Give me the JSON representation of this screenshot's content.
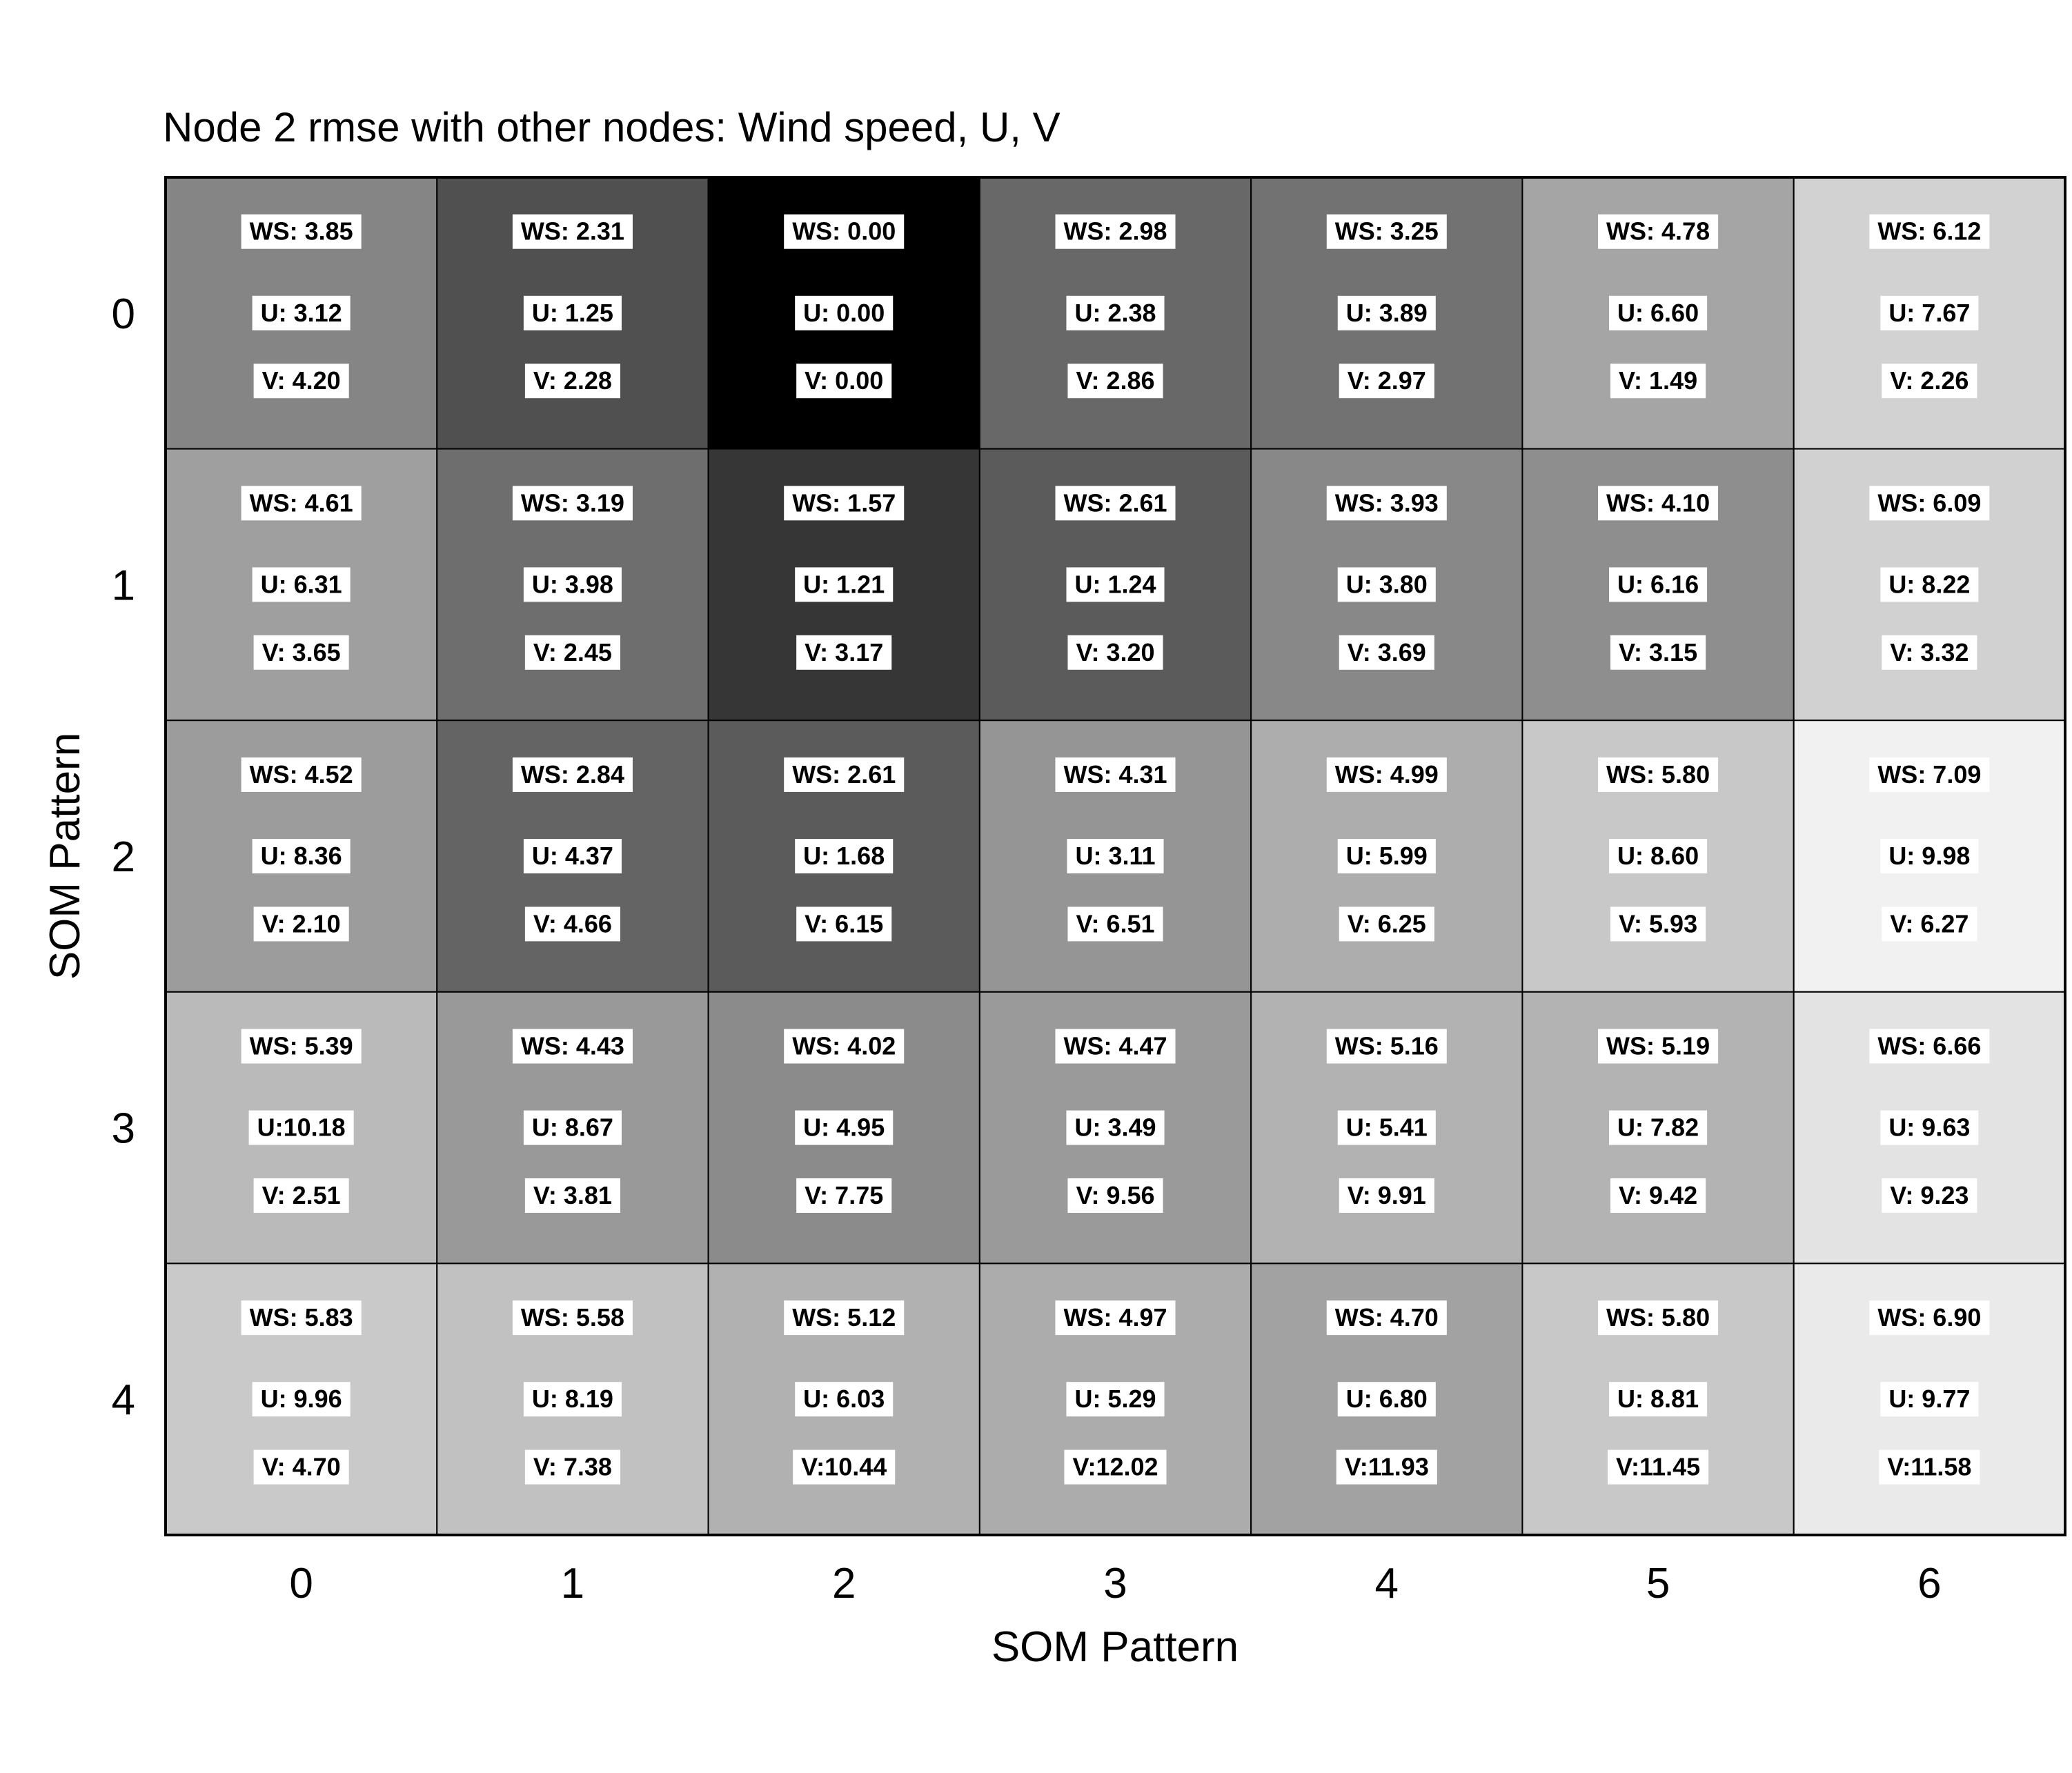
{
  "chart_data": {
    "type": "heatmap",
    "title": "Node 2 rmse with other nodes: Wind speed, U, V",
    "xlabel": "SOM Pattern",
    "ylabel": "SOM Pattern",
    "x_ticks": [
      "0",
      "1",
      "2",
      "3",
      "4",
      "5",
      "6"
    ],
    "y_ticks": [
      "0",
      "1",
      "2",
      "3",
      "4"
    ],
    "colormap": "grayscale (black = 0, lighter = larger WS)",
    "rows": [
      [
        {
          "ws": "WS: 3.85",
          "u": "U: 3.12",
          "v": "V: 4.20",
          "shade": "#858585"
        },
        {
          "ws": "WS: 2.31",
          "u": "U: 1.25",
          "v": "V: 2.28",
          "shade": "#505050"
        },
        {
          "ws": "WS: 0.00",
          "u": "U: 0.00",
          "v": "V: 0.00",
          "shade": "#000000"
        },
        {
          "ws": "WS: 2.98",
          "u": "U: 2.38",
          "v": "V: 2.86",
          "shade": "#686868"
        },
        {
          "ws": "WS: 3.25",
          "u": "U: 3.89",
          "v": "V: 2.97",
          "shade": "#727272"
        },
        {
          "ws": "WS: 4.78",
          "u": "U: 6.60",
          "v": "V: 1.49",
          "shade": "#a5a5a5"
        },
        {
          "ws": "WS: 6.12",
          "u": "U: 7.67",
          "v": "V: 2.26",
          "shade": "#d2d2d2"
        }
      ],
      [
        {
          "ws": "WS: 4.61",
          "u": "U: 6.31",
          "v": "V: 3.65",
          "shade": "#9f9f9f"
        },
        {
          "ws": "WS: 3.19",
          "u": "U: 3.98",
          "v": "V: 2.45",
          "shade": "#6e6e6e"
        },
        {
          "ws": "WS: 1.57",
          "u": "U: 1.21",
          "v": "V: 3.17",
          "shade": "#363636"
        },
        {
          "ws": "WS: 2.61",
          "u": "U: 1.24",
          "v": "V: 3.20",
          "shade": "#5b5b5b"
        },
        {
          "ws": "WS: 3.93",
          "u": "U: 3.80",
          "v": "V: 3.69",
          "shade": "#888888"
        },
        {
          "ws": "WS: 4.10",
          "u": "U: 6.16",
          "v": "V: 3.15",
          "shade": "#8e8e8e"
        },
        {
          "ws": "WS: 6.09",
          "u": "U: 8.22",
          "v": "V: 3.32",
          "shade": "#d1d1d1"
        }
      ],
      [
        {
          "ws": "WS: 4.52",
          "u": "U: 8.36",
          "v": "V: 2.10",
          "shade": "#9c9c9c"
        },
        {
          "ws": "WS: 2.84",
          "u": "U: 4.37",
          "v": "V: 4.66",
          "shade": "#646464"
        },
        {
          "ws": "WS: 2.61",
          "u": "U: 1.68",
          "v": "V: 6.15",
          "shade": "#5b5b5b"
        },
        {
          "ws": "WS: 4.31",
          "u": "U: 3.11",
          "v": "V: 6.51",
          "shade": "#959595"
        },
        {
          "ws": "WS: 4.99",
          "u": "U: 5.99",
          "v": "V: 6.25",
          "shade": "#adadad"
        },
        {
          "ws": "WS: 5.80",
          "u": "U: 8.60",
          "v": "V: 5.93",
          "shade": "#c8c8c8"
        },
        {
          "ws": "WS: 7.09",
          "u": "U: 9.98",
          "v": "V: 6.27",
          "shade": "#f1f1f1"
        }
      ],
      [
        {
          "ws": "WS: 5.39",
          "u": "U:10.18",
          "v": "V: 2.51",
          "shade": "#bababa"
        },
        {
          "ws": "WS: 4.43",
          "u": "U: 8.67",
          "v": "V: 3.81",
          "shade": "#999999"
        },
        {
          "ws": "WS: 4.02",
          "u": "U: 4.95",
          "v": "V: 7.75",
          "shade": "#8b8b8b"
        },
        {
          "ws": "WS: 4.47",
          "u": "U: 3.49",
          "v": "V: 9.56",
          "shade": "#9a9a9a"
        },
        {
          "ws": "WS: 5.16",
          "u": "U: 5.41",
          "v": "V: 9.91",
          "shade": "#b2b2b2"
        },
        {
          "ws": "WS: 5.19",
          "u": "U: 7.82",
          "v": "V: 9.42",
          "shade": "#b3b3b3"
        },
        {
          "ws": "WS: 6.66",
          "u": "U: 9.63",
          "v": "V: 9.23",
          "shade": "#e3e3e3"
        }
      ],
      [
        {
          "ws": "WS: 5.83",
          "u": "U: 9.96",
          "v": "V: 4.70",
          "shade": "#c9c9c9"
        },
        {
          "ws": "WS: 5.58",
          "u": "U: 8.19",
          "v": "V: 7.38",
          "shade": "#c1c1c1"
        },
        {
          "ws": "WS: 5.12",
          "u": "U: 6.03",
          "v": "V:10.44",
          "shade": "#b1b1b1"
        },
        {
          "ws": "WS: 4.97",
          "u": "U: 5.29",
          "v": "V:12.02",
          "shade": "#acacac"
        },
        {
          "ws": "WS: 4.70",
          "u": "U: 6.80",
          "v": "V:11.93",
          "shade": "#a2a2a2"
        },
        {
          "ws": "WS: 5.80",
          "u": "U: 8.81",
          "v": "V:11.45",
          "shade": "#c8c8c8"
        },
        {
          "ws": "WS: 6.90",
          "u": "U: 9.77",
          "v": "V:11.58",
          "shade": "#eaeaea"
        }
      ]
    ]
  }
}
